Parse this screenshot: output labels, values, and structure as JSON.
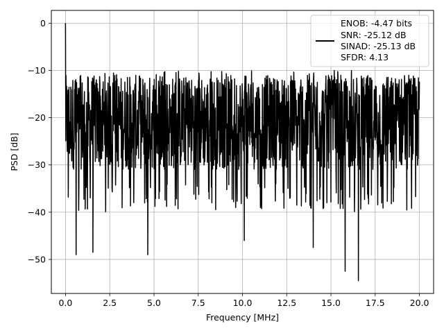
{
  "chart_data": {
    "type": "line",
    "title": "",
    "xlabel": "Frequency [MHz]",
    "ylabel": "PSD [dB]",
    "xlim": [
      -0.8,
      20.8
    ],
    "ylim": [
      -57.2,
      2.7
    ],
    "xticks": [
      0.0,
      2.5,
      5.0,
      7.5,
      10.0,
      12.5,
      15.0,
      17.5,
      20.0
    ],
    "xtick_labels": [
      "0.0",
      "2.5",
      "5.0",
      "7.5",
      "10.0",
      "12.5",
      "15.0",
      "17.5",
      "20.0"
    ],
    "yticks": [
      0,
      -10,
      -20,
      -30,
      -40,
      -50
    ],
    "ytick_labels": [
      "0",
      "−10",
      "−20",
      "−30",
      "−40",
      "−50"
    ],
    "grid": true,
    "legend_position": "upper right",
    "series": [
      {
        "name": "ENOB: -4.47 bits\nSNR: -25.12 dB\nSINAD: -25.13 dB\nSFDR: 4.13",
        "color": "#000000",
        "x_range": [
          0.0,
          20.0
        ],
        "peak": {
          "x": 0.0,
          "y": 0.0
        },
        "typical_range": [
          -34,
          -10
        ],
        "deep_minima": [
          {
            "x": 0.6,
            "y": -49
          },
          {
            "x": 1.55,
            "y": -48.5
          },
          {
            "x": 4.65,
            "y": -49
          },
          {
            "x": 10.1,
            "y": -46
          },
          {
            "x": 14.0,
            "y": -47.5
          },
          {
            "x": 15.8,
            "y": -52.5
          },
          {
            "x": 16.55,
            "y": -54.5
          }
        ]
      }
    ]
  },
  "legend": {
    "lines": [
      "ENOB: -4.47 bits",
      "SNR: -25.12 dB",
      "SINAD: -25.13 dB",
      "SFDR: 4.13"
    ]
  }
}
